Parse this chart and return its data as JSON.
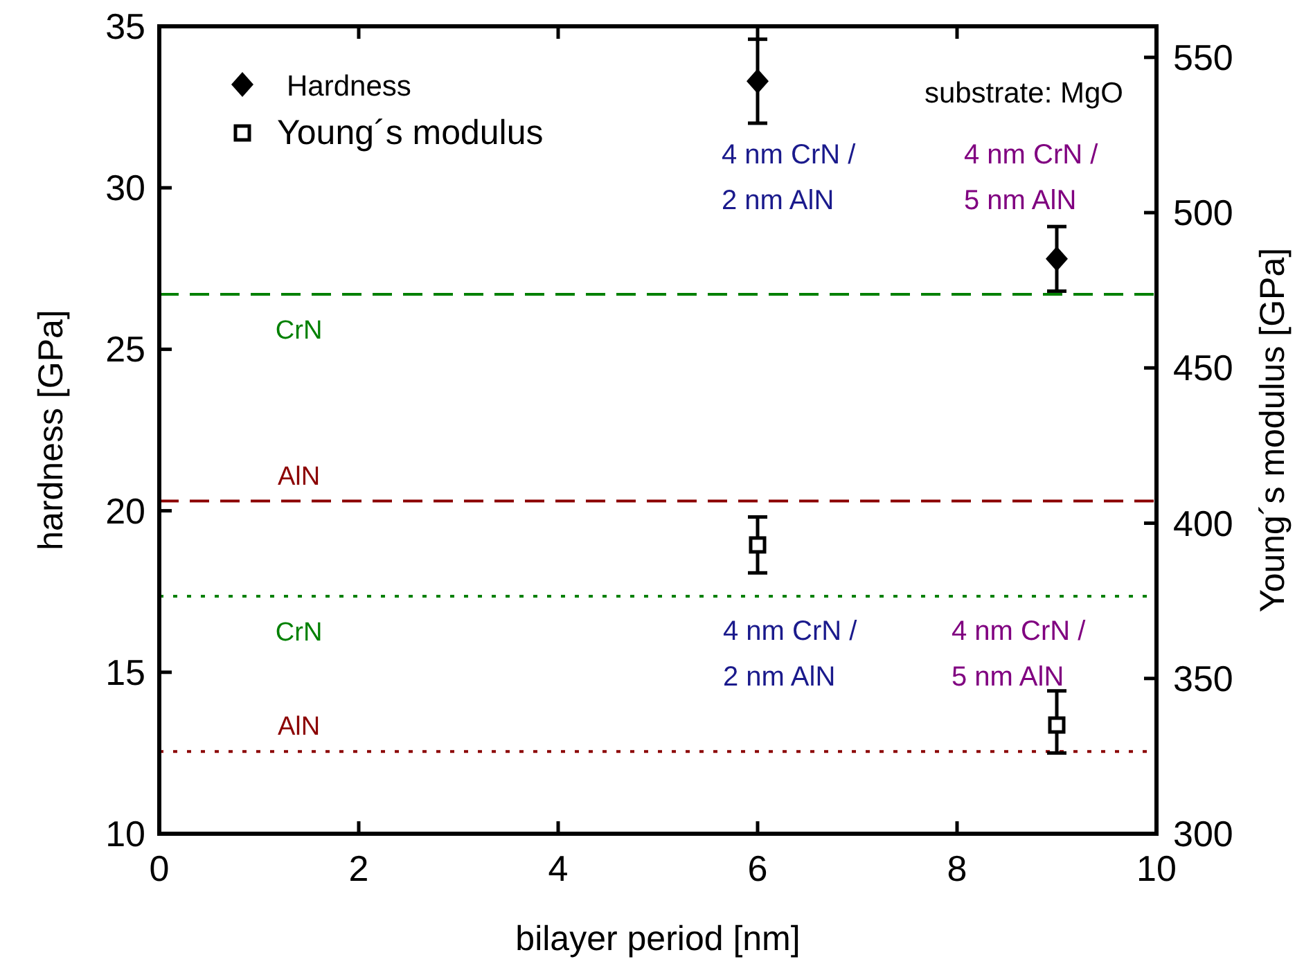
{
  "chart_data": {
    "type": "scatter",
    "xlabel": "bilayer period [nm]",
    "ylabel": "hardness [GPa]",
    "y2label": "Young´s modulus [GPa]",
    "xlim": [
      0,
      10
    ],
    "xticks": [
      0,
      2,
      4,
      6,
      8,
      10
    ],
    "ylim": [
      10,
      35
    ],
    "yticks": [
      10,
      15,
      20,
      25,
      30,
      35
    ],
    "y2lim": [
      300,
      560
    ],
    "y2ticks": [
      300,
      350,
      400,
      450,
      500,
      550
    ],
    "legend": "top left",
    "grid": false,
    "x": [
      6,
      9
    ],
    "series": [
      {
        "name": "Hardness",
        "color": "#000000",
        "marker": "diamond",
        "values": [
          33.3,
          27.8
        ],
        "errors": [
          [
            32.0,
            34.6
          ],
          [
            26.8,
            28.8
          ]
        ]
      },
      {
        "name": "Young´s modulus",
        "color": "#000000",
        "marker": "square",
        "axis": "y2",
        "values": [
          393,
          335
        ],
        "errors": [
          [
            384,
            402
          ],
          [
            326,
            346
          ]
        ]
      }
    ],
    "ref_lines": [
      {
        "axis": "y",
        "value": 26.7,
        "label": "CrN",
        "color": "#008000",
        "line_style": "dashed"
      },
      {
        "axis": "y",
        "value": 20.3,
        "label": "AlN",
        "color": "#8b0000",
        "line_style": "dashed"
      },
      {
        "axis": "y2",
        "value": 376.5,
        "label": "CrN",
        "color": "#008000",
        "line_style": "dotted"
      },
      {
        "axis": "y2",
        "value": 326.5,
        "label": "AlN",
        "color": "#8b0000",
        "line_style": "dotted"
      }
    ],
    "annotations": [
      "substrate: MgO",
      "4 nm CrN /\n2 nm AlN",
      "4 nm CrN /\n5 nm AlN",
      "4 nm CrN /\n2 nm AlN",
      "4 nm CrN /\n5 nm AlN"
    ]
  }
}
